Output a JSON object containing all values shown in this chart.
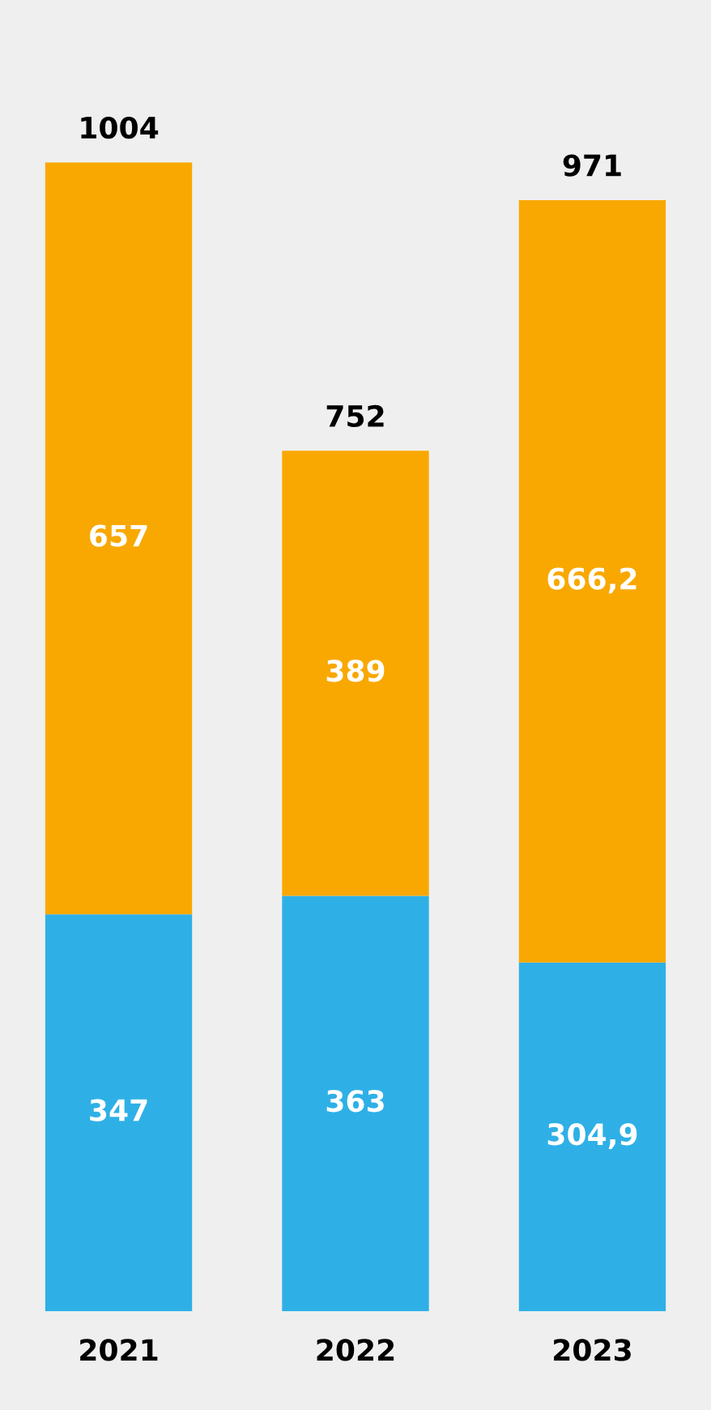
{
  "chart_data": {
    "type": "bar",
    "stacked": true,
    "categories": [
      "2021",
      "2022",
      "2023"
    ],
    "series": [
      {
        "color": "#2eb0e6",
        "values": [
          347,
          363,
          304.9
        ],
        "value_labels": [
          "347",
          "363",
          "304,9"
        ]
      },
      {
        "color": "#f8a800",
        "values": [
          657,
          389,
          666.2
        ],
        "value_labels": [
          "657",
          "389",
          "666,2"
        ]
      }
    ],
    "totals": [
      "1004",
      "752",
      "971"
    ],
    "grid": false,
    "legend": false
  }
}
